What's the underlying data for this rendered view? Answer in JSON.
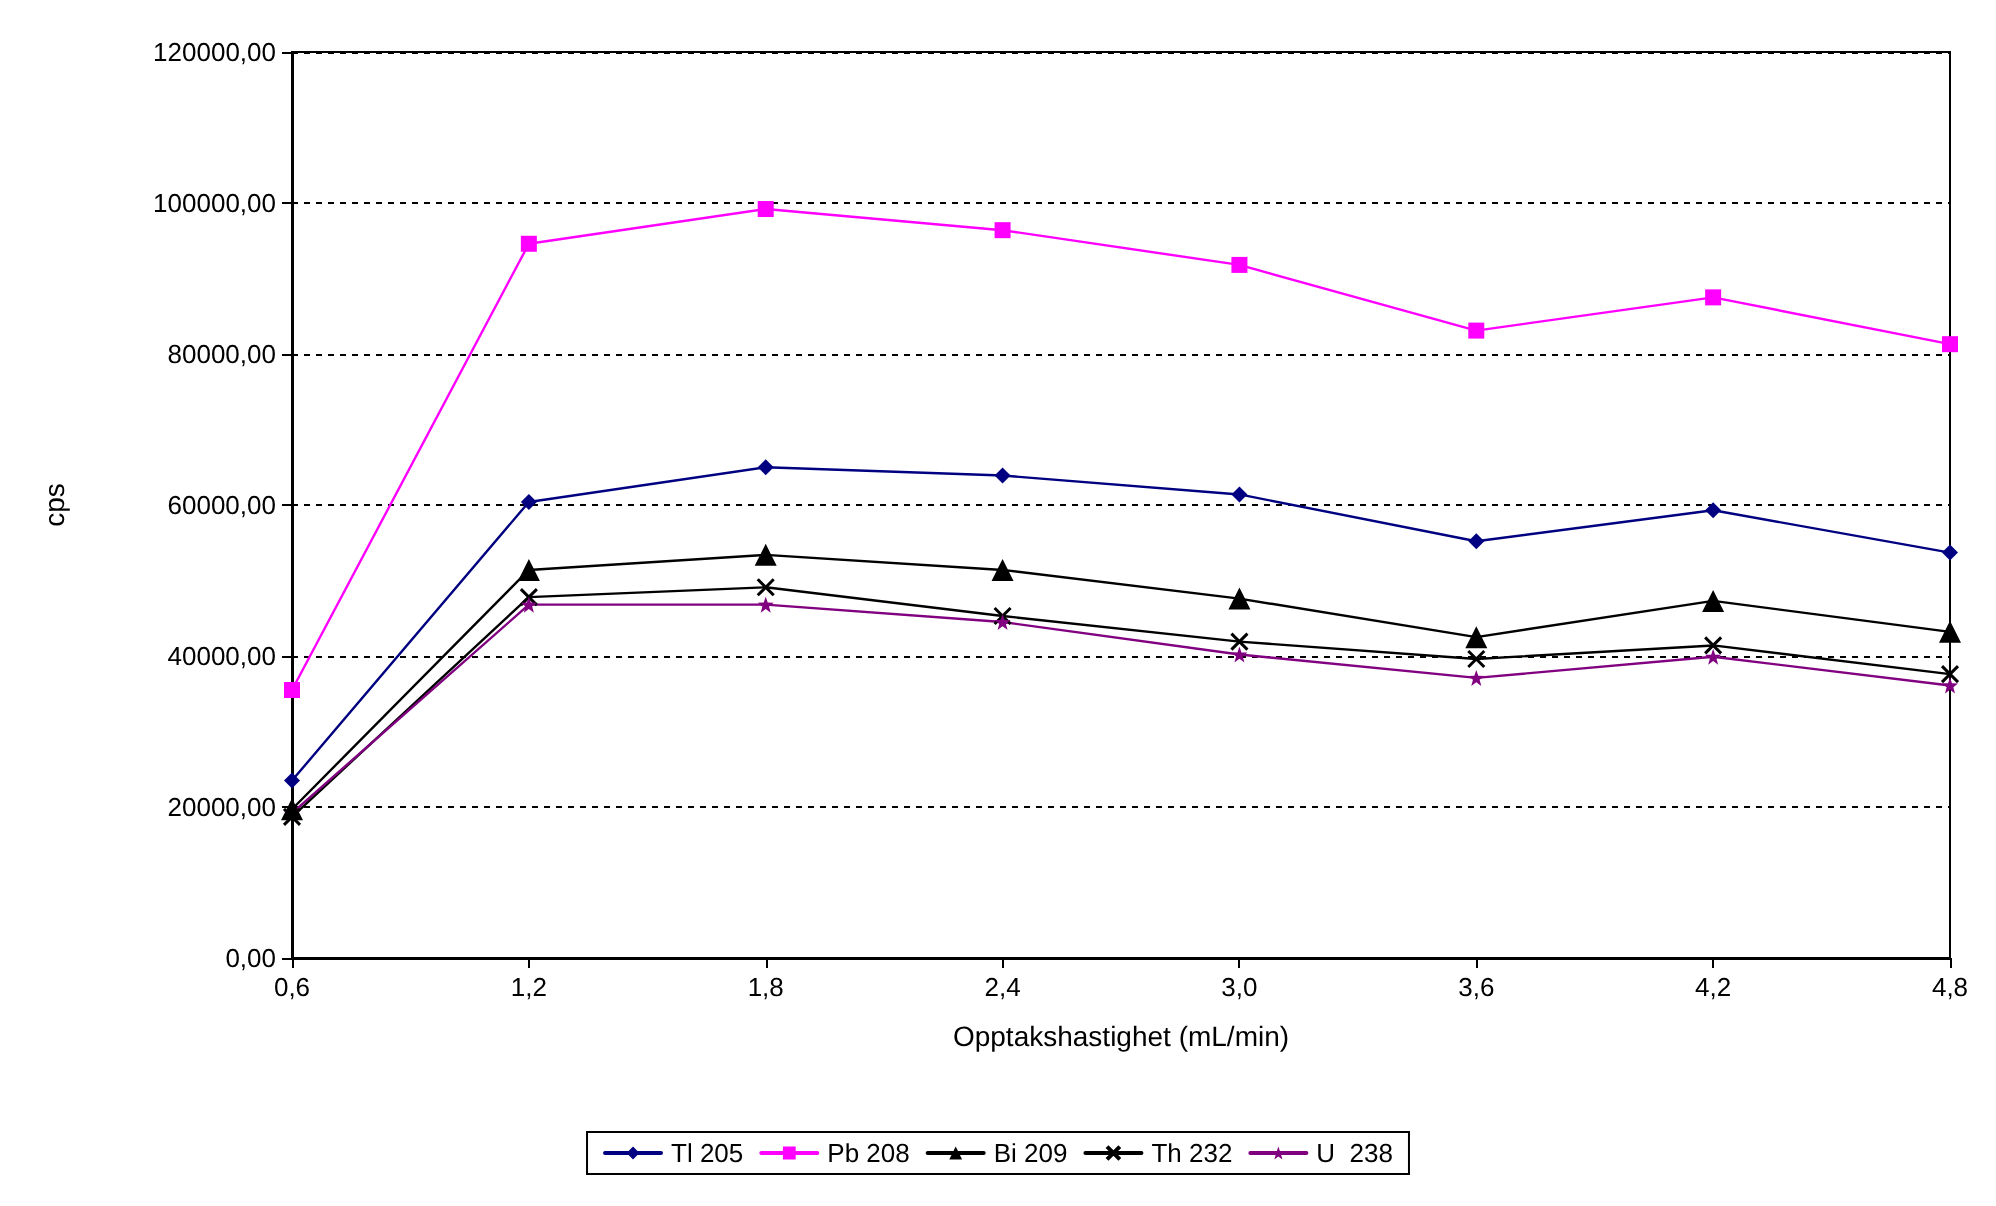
{
  "chart_data": {
    "type": "line",
    "xlabel": "Opptakshastighet (mL/min)",
    "ylabel": "cps",
    "x": [
      0.6,
      1.2,
      1.8,
      2.4,
      3.0,
      3.6,
      4.2,
      4.8
    ],
    "xlim": [
      0.6,
      4.8
    ],
    "xticks": [
      {
        "value": 0.6,
        "label": "0,6"
      },
      {
        "value": 1.2,
        "label": "1,2"
      },
      {
        "value": 1.8,
        "label": "1,8"
      },
      {
        "value": 2.4,
        "label": "2,4"
      },
      {
        "value": 3.0,
        "label": "3,0"
      },
      {
        "value": 3.6,
        "label": "3,6"
      },
      {
        "value": 4.2,
        "label": "4,2"
      },
      {
        "value": 4.8,
        "label": "4,8"
      }
    ],
    "ylim": [
      0,
      120000
    ],
    "yticks": [
      {
        "value": 0,
        "label": "0,00"
      },
      {
        "value": 20000,
        "label": "20000,00"
      },
      {
        "value": 40000,
        "label": "40000,00"
      },
      {
        "value": 60000,
        "label": "60000,00"
      },
      {
        "value": 80000,
        "label": "80000,00"
      },
      {
        "value": 100000,
        "label": "100000,00"
      },
      {
        "value": 120000,
        "label": "120000,00"
      }
    ],
    "grid": "y",
    "legend": "bottom",
    "line_style": "solid",
    "series": [
      {
        "name": "Tl 205",
        "color": "#000080",
        "marker": "diamond",
        "values": [
          23500,
          60400,
          65000,
          63900,
          61400,
          55200,
          59300,
          53700
        ]
      },
      {
        "name": "Pb 208",
        "color": "#ff00ff",
        "marker": "square",
        "values": [
          35500,
          94600,
          99200,
          96400,
          91800,
          83100,
          87500,
          81300
        ]
      },
      {
        "name": "Bi 209",
        "color": "#000000",
        "marker": "triangle",
        "values": [
          19700,
          51400,
          53400,
          51400,
          47600,
          42500,
          47300,
          43200
        ]
      },
      {
        "name": "Th 232",
        "color": "#000000",
        "marker": "cross",
        "values": [
          18700,
          47800,
          49100,
          45300,
          41900,
          39600,
          41400,
          37600
        ]
      },
      {
        "name": "U  238",
        "color": "#800080",
        "marker": "star",
        "values": [
          19200,
          46800,
          46800,
          44500,
          40200,
          37100,
          39900,
          36100
        ]
      }
    ]
  }
}
